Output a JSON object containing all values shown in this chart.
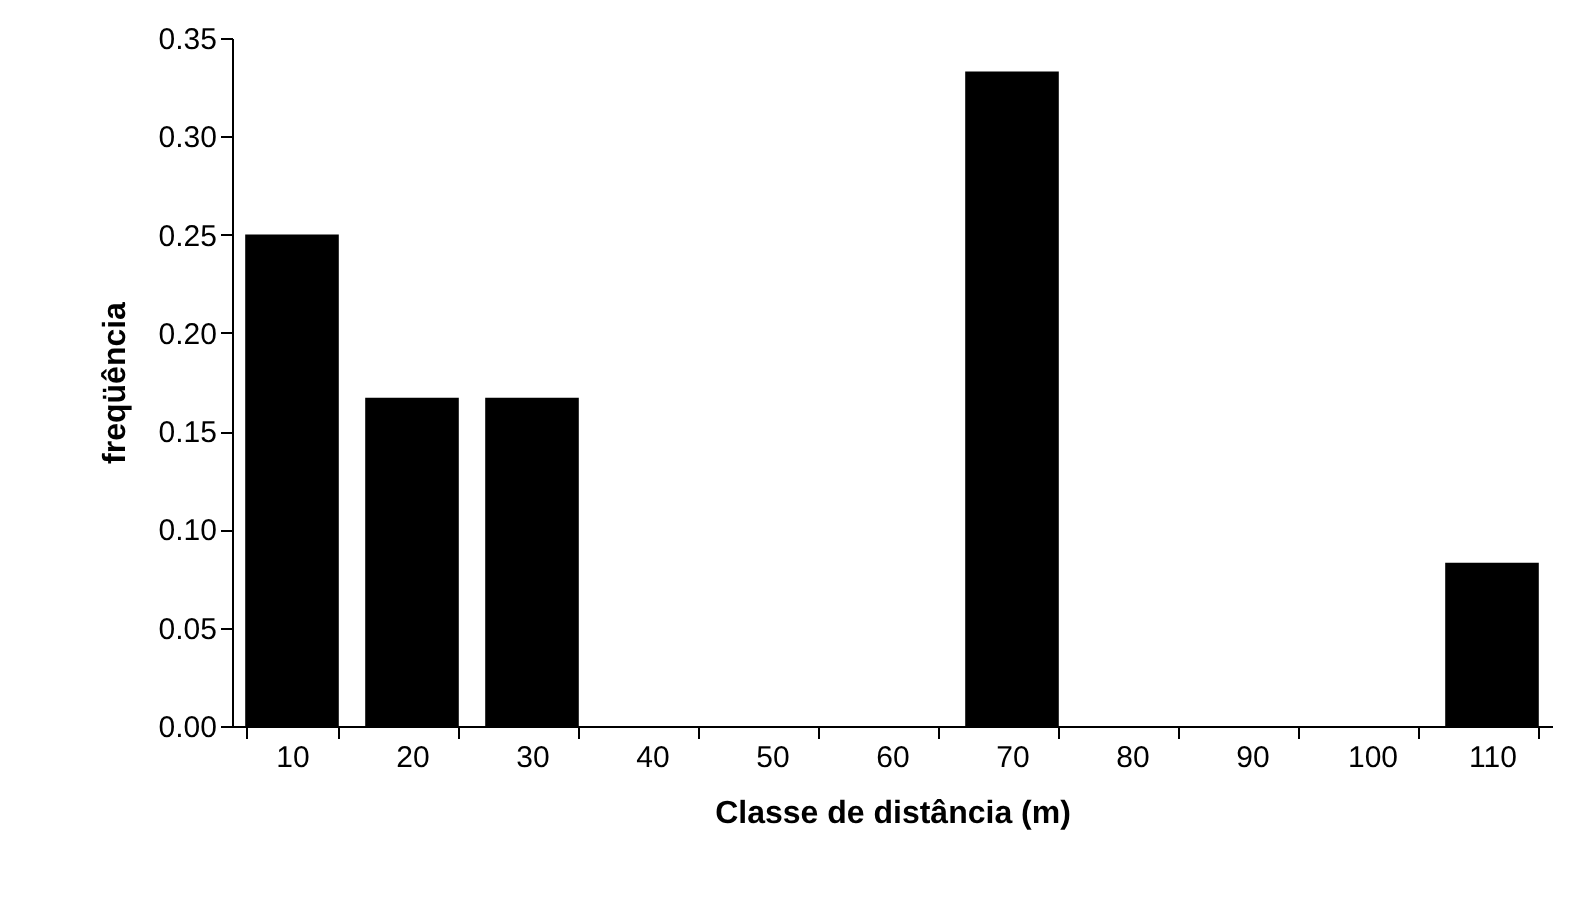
{
  "chart_data": {
    "type": "bar",
    "xlabel": "Classe de distância (m)",
    "ylabel": "freqüência",
    "categories": [
      "10",
      "20",
      "30",
      "40",
      "50",
      "60",
      "70",
      "80",
      "90",
      "100",
      "110"
    ],
    "values": [
      0.25,
      0.167,
      0.167,
      0,
      0,
      0,
      0.333,
      0,
      0,
      0,
      0.083
    ],
    "color": "#000000",
    "ylim": [
      0,
      0.35
    ],
    "yticks": [
      {
        "value": 0,
        "label": "0.00"
      },
      {
        "value": 0.05,
        "label": "0.05"
      },
      {
        "value": 0.1,
        "label": "0.10"
      },
      {
        "value": 0.15,
        "label": "0.15"
      },
      {
        "value": 0.2,
        "label": "0.20"
      },
      {
        "value": 0.25,
        "label": "0.25"
      },
      {
        "value": 0.3,
        "label": "0.30"
      },
      {
        "value": 0.35,
        "label": "0.35"
      }
    ],
    "grid": false
  }
}
